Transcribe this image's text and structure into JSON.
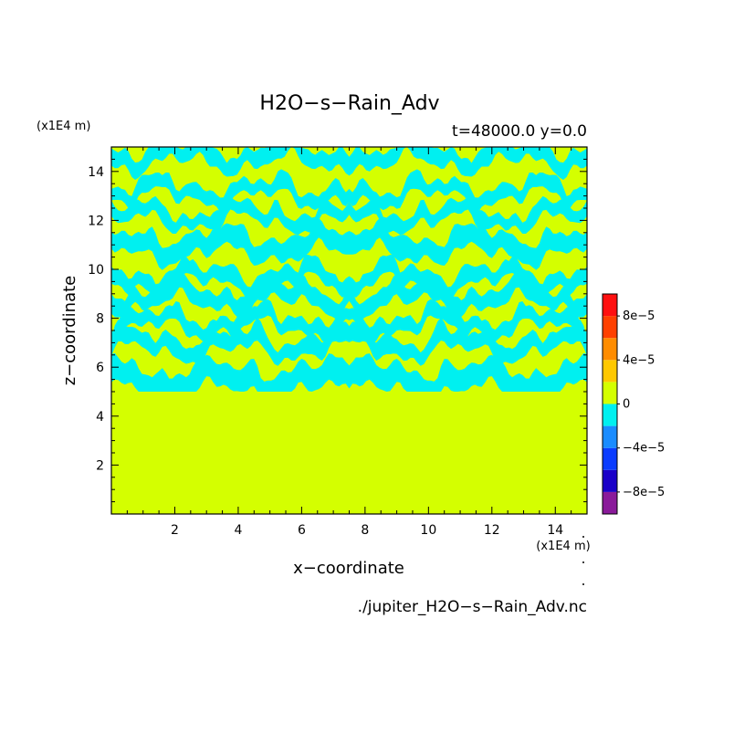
{
  "chart_data": {
    "type": "heatmap",
    "title": "H2O−s−Rain_Adv",
    "subtitle": "t=48000.0 y=0.0",
    "xlabel": "x−coordinate",
    "ylabel": "z−coordinate",
    "x_unit": "(x1E4 m)",
    "y_unit": "(x1E4 m)",
    "source_file": "./jupiter_H2O−s−Rain_Adv.nc",
    "xlim": [
      0,
      15
    ],
    "ylim": [
      0,
      15
    ],
    "x_ticks": [
      2,
      4,
      6,
      8,
      10,
      12,
      14
    ],
    "y_ticks": [
      2,
      4,
      6,
      8,
      10,
      12,
      14
    ],
    "x_tick_labels": [
      "2",
      "4",
      "6",
      "8",
      "10",
      "12",
      "14"
    ],
    "y_tick_labels": [
      "2",
      "4",
      "6",
      "8",
      "10",
      "12",
      "14"
    ],
    "field_summary": {
      "zero_region_top": 5.0,
      "mixed_region": [
        5.0,
        15.0
      ],
      "background_level": 0,
      "negative_level": -2e-05
    },
    "colorbar": {
      "levels": [
        -0.0001,
        -8e-05,
        -6e-05,
        -4e-05,
        -2e-05,
        0,
        2e-05,
        4e-05,
        6e-05,
        8e-05,
        0.0001
      ],
      "colors": [
        "#8a1a9a",
        "#1a00c8",
        "#0a3cff",
        "#1a8cff",
        "#00f0f0",
        "#d4ff00",
        "#ffc800",
        "#ff8c00",
        "#ff4000",
        "#ff1010",
        "#ffaaaa"
      ],
      "tick_values": [
        -8e-05,
        -4e-05,
        0,
        4e-05,
        8e-05
      ],
      "tick_labels": [
        "−8e−5",
        "−4e−5",
        "0",
        "4e−5",
        "8e−5"
      ]
    },
    "colors": {
      "zero": "#d4ff00",
      "negative": "#00f0f0"
    }
  }
}
